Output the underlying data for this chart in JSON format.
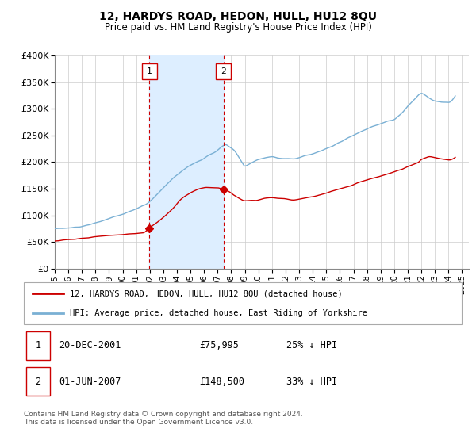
{
  "title": "12, HARDYS ROAD, HEDON, HULL, HU12 8QU",
  "subtitle": "Price paid vs. HM Land Registry's House Price Index (HPI)",
  "ylim": [
    0,
    400000
  ],
  "yticks": [
    0,
    50000,
    100000,
    150000,
    200000,
    250000,
    300000,
    350000,
    400000
  ],
  "ytick_labels": [
    "£0",
    "£50K",
    "£100K",
    "£150K",
    "£200K",
    "£250K",
    "£300K",
    "£350K",
    "£400K"
  ],
  "xmin": 1995.0,
  "xmax": 2025.5,
  "transaction1_x": 2001.97,
  "transaction1_y": 75995,
  "transaction2_x": 2007.42,
  "transaction2_y": 148500,
  "transaction1_date": "20-DEC-2001",
  "transaction1_price": "£75,995",
  "transaction1_hpi": "25% ↓ HPI",
  "transaction2_date": "01-JUN-2007",
  "transaction2_price": "£148,500",
  "transaction2_hpi": "33% ↓ HPI",
  "line1_color": "#cc0000",
  "line2_color": "#7ab0d4",
  "shade_color": "#ddeeff",
  "vline_color": "#cc0000",
  "grid_color": "#cccccc",
  "legend_line1": "12, HARDYS ROAD, HEDON, HULL, HU12 8QU (detached house)",
  "legend_line2": "HPI: Average price, detached house, East Riding of Yorkshire",
  "footer": "Contains HM Land Registry data © Crown copyright and database right 2024.\nThis data is licensed under the Open Government Licence v3.0."
}
